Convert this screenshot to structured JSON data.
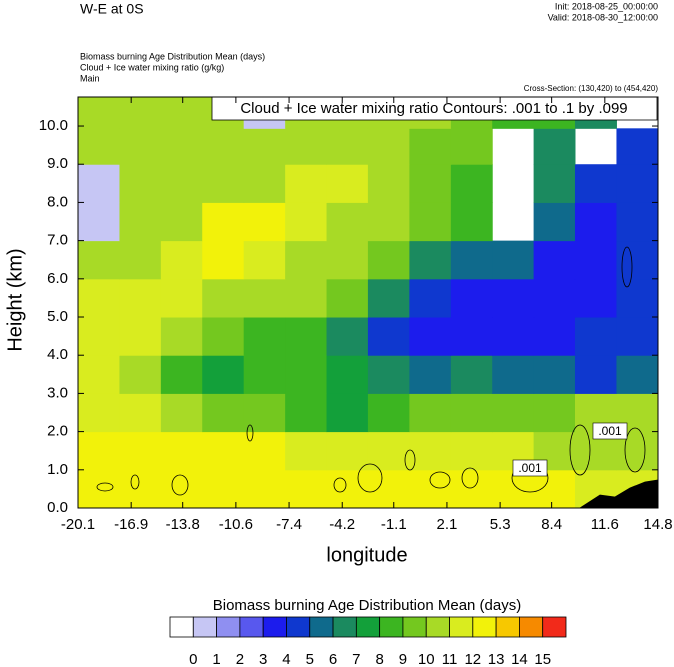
{
  "chart_data": {
    "type": "contourf",
    "title": "W-E at 0S",
    "init": "Init: 2018-08-25_00:00:00",
    "valid": "Valid: 2018-08-30_12:00:00",
    "field_label": "Biomass burning Age Distribution Mean   (days)",
    "contour_label": "Cloud + Ice water mixing ratio   (g/kg)",
    "run_label": "Main",
    "cross_section": "Cross-Section: (130,420) to (454,420)",
    "contour_info": "Cloud + Ice water mixing ratio Contours: .001 to .1 by .099",
    "contour_line_labels": [
      ".001",
      ".001"
    ],
    "xlabel": "longitude",
    "ylabel": "Height (km)",
    "xlim": [
      -20.1,
      14.8
    ],
    "ylim": [
      0,
      10.76
    ],
    "xticks": [
      -20.1,
      -16.9,
      -13.8,
      -10.6,
      -7.4,
      -4.2,
      -1.1,
      2.1,
      5.3,
      8.4,
      11.6,
      14.8
    ],
    "yticks": [
      {
        "value": 0,
        "label": "0.0"
      },
      {
        "value": 1,
        "label": "1.0"
      },
      {
        "value": 2,
        "label": "2.0"
      },
      {
        "value": 3,
        "label": "3.0"
      },
      {
        "value": 4,
        "label": "4.0"
      },
      {
        "value": 5,
        "label": "5.0"
      },
      {
        "value": 6,
        "label": "6.0"
      },
      {
        "value": 7,
        "label": "7.0"
      },
      {
        "value": 8,
        "label": "8.0"
      },
      {
        "value": 9,
        "label": "9.0"
      },
      {
        "value": 10,
        "label": "10.0"
      }
    ],
    "x": [
      -18.85,
      -16.36,
      -13.87,
      -11.38,
      -8.88,
      -6.39,
      -3.9,
      -1.41,
      1.09,
      3.58,
      6.07,
      8.56,
      11.05,
      13.55
    ],
    "y": [
      0.5,
      1.5,
      2.5,
      3.5,
      4.5,
      5.5,
      6.5,
      7.5,
      8.5,
      9.5,
      10.38
    ],
    "z": [
      [
        12.5,
        12.5,
        12.5,
        12.5,
        12.5,
        12.5,
        12.5,
        12.5,
        12.5,
        12.5,
        12.5,
        12.5,
        11.5,
        11.5
      ],
      [
        12.5,
        12.5,
        12.5,
        12.5,
        12.5,
        11.5,
        11.5,
        11.5,
        11.5,
        11.5,
        11.5,
        10.5,
        10.5,
        10.5
      ],
      [
        11.5,
        11.5,
        10.5,
        9.5,
        9.5,
        8.5,
        7.5,
        8.5,
        9.5,
        9.5,
        9.5,
        9.5,
        10.5,
        10.5
      ],
      [
        11.5,
        10.5,
        8.5,
        7.5,
        8.5,
        8.5,
        7.5,
        6.5,
        5.5,
        6.5,
        5.5,
        5.5,
        4.5,
        5.5
      ],
      [
        11.5,
        11.5,
        10.5,
        9.5,
        8.5,
        8.5,
        6.5,
        4.5,
        3.5,
        3.5,
        3.5,
        3.5,
        4.5,
        4.5
      ],
      [
        11.5,
        11.5,
        11.5,
        10.5,
        10.5,
        10.5,
        9.5,
        6.5,
        4.5,
        3.5,
        3.5,
        3.5,
        3.5,
        4.5
      ],
      [
        10.5,
        10.5,
        11.5,
        12.5,
        11.5,
        10.5,
        10.5,
        9.5,
        6.5,
        5.5,
        5.5,
        3.5,
        3.5,
        4.5
      ],
      [
        0.5,
        10.5,
        10.5,
        12.5,
        12.5,
        11.5,
        10.5,
        10.5,
        9.5,
        8.5,
        null,
        5.5,
        3.5,
        4.5
      ],
      [
        0.5,
        10.5,
        10.5,
        10.5,
        10.5,
        11.5,
        11.5,
        10.5,
        9.5,
        8.5,
        null,
        6.5,
        4.5,
        4.5
      ],
      [
        10.5,
        10.5,
        10.5,
        10.5,
        10.5,
        10.5,
        10.5,
        10.5,
        9.5,
        9.5,
        null,
        6.5,
        null,
        4.5
      ],
      [
        10.5,
        10.5,
        10.5,
        10.5,
        0.5,
        10.5,
        10.5,
        10.5,
        10.5,
        9.5,
        8.5,
        8.5,
        6.5,
        null
      ]
    ],
    "colorbar_title": "Biomass burning Age Distribution Mean  (days)",
    "levels": [
      0,
      1,
      2,
      3,
      4,
      5,
      6,
      7,
      8,
      9,
      10,
      11,
      12,
      13,
      14,
      15
    ],
    "colors": [
      "#ffffff",
      "#c6c6f4",
      "#8f8ff1",
      "#5858ee",
      "#1c1ced",
      "#0f38cf",
      "#0f6a8c",
      "#1b8a5f",
      "#13a03a",
      "#3cb521",
      "#74c81f",
      "#a8da26",
      "#d9ec1f",
      "#f2f20a",
      "#f7c800",
      "#f68a00",
      "#f22a1a"
    ]
  }
}
